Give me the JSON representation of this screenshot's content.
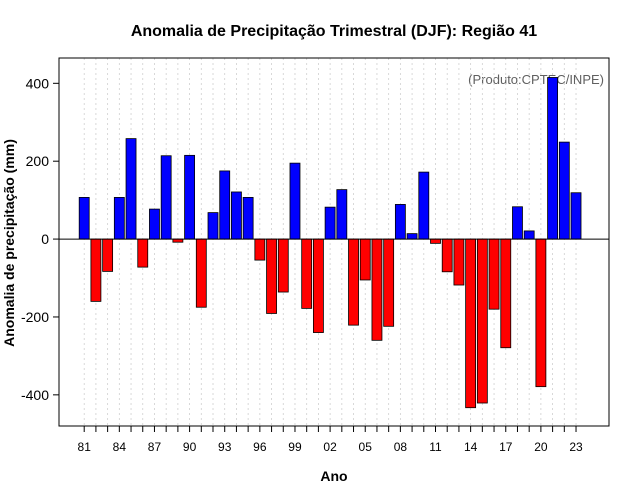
{
  "chart_data": {
    "type": "bar",
    "title": "Anomalia de Precipitação Trimestral (DJF): Região 41",
    "xlabel": "Ano",
    "ylabel": "Anomalia de precipitação (mm)",
    "source_note": "(Produto:CPTEC/INPE)",
    "ylim": [
      -480,
      465
    ],
    "yticks": [
      -400,
      -200,
      0,
      200,
      400
    ],
    "x_tick_labels": [
      "81",
      "84",
      "87",
      "90",
      "93",
      "96",
      "99",
      "02",
      "05",
      "08",
      "11",
      "14",
      "17",
      "20",
      "23"
    ],
    "x_tick_indices": [
      0,
      3,
      6,
      9,
      12,
      15,
      18,
      21,
      24,
      27,
      30,
      33,
      36,
      39,
      42
    ],
    "years": [
      1981,
      1982,
      1983,
      1984,
      1985,
      1986,
      1987,
      1988,
      1989,
      1990,
      1991,
      1992,
      1993,
      1994,
      1995,
      1996,
      1997,
      1998,
      1999,
      2000,
      2001,
      2002,
      2003,
      2004,
      2005,
      2006,
      2007,
      2008,
      2009,
      2010,
      2011,
      2012,
      2013,
      2014,
      2015,
      2016,
      2017,
      2018,
      2019,
      2020,
      2021,
      2022,
      2023
    ],
    "values": [
      107,
      -160,
      -83,
      107,
      258,
      -72,
      77,
      214,
      -8,
      215,
      -175,
      68,
      175,
      121,
      107,
      -54,
      -191,
      -136,
      195,
      -178,
      -240,
      82,
      127,
      -221,
      -105,
      -260,
      -224,
      89,
      14,
      172,
      -11,
      -84,
      -118,
      -433,
      -421,
      -180,
      -279,
      83,
      21,
      -379,
      415,
      249,
      119
    ],
    "colors": {
      "positive": "#0000ff",
      "negative": "#ff0000"
    },
    "grid": true
  }
}
